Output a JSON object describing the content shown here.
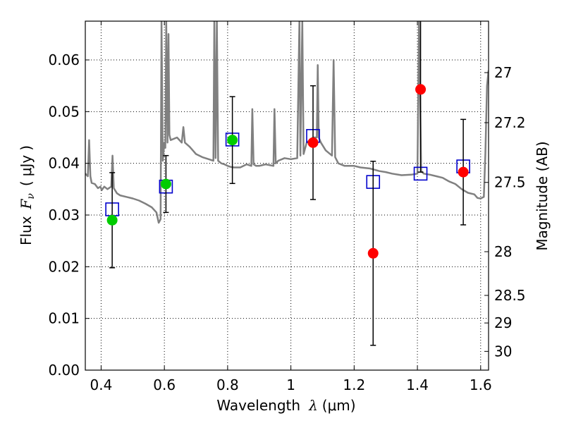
{
  "chart_data": {
    "type": "scatter",
    "xlabel": {
      "text": "Wavelength",
      "symbol": "λ",
      "unit": "μm"
    },
    "ylabel": {
      "text": "Flux",
      "symbol": "F",
      "subscript": "ν",
      "unit": "μJy"
    },
    "y2label": "Magnitude (AB)",
    "xlim": [
      0.35,
      1.625
    ],
    "ylim": [
      0.0,
      0.0675
    ],
    "grid": true,
    "x_ticks": [
      0.4,
      0.6,
      0.8,
      1.0,
      1.2,
      1.4,
      1.6
    ],
    "x_tick_labels": [
      "0.4",
      "0.6",
      "0.8",
      "1",
      "1.2",
      "1.4",
      "1.6"
    ],
    "y_ticks": [
      0.0,
      0.01,
      0.02,
      0.03,
      0.04,
      0.05,
      0.06
    ],
    "y_tick_labels": [
      "0.00",
      "0.01",
      "0.02",
      "0.03",
      "0.04",
      "0.05",
      "0.06"
    ],
    "y2_ticks": [
      27,
      27.2,
      27.5,
      28,
      28.5,
      29,
      30
    ],
    "y2_tick_labels": [
      "27",
      "27.2",
      "27.5",
      "28",
      "28.5",
      "29",
      "30"
    ],
    "colors": {
      "model": "#808080",
      "green": "#00cc00",
      "red": "#ff0000",
      "box": "#0000cc",
      "error": "#000000"
    },
    "observed_green": [
      {
        "x": 0.435,
        "y": 0.029,
        "err": 0.0092
      },
      {
        "x": 0.605,
        "y": 0.036,
        "err": 0.0055
      },
      {
        "x": 0.815,
        "y": 0.0445,
        "err": 0.0084
      }
    ],
    "observed_red": [
      {
        "x": 1.07,
        "y": 0.044,
        "err": 0.011
      },
      {
        "x": 1.26,
        "y": 0.0226,
        "err": 0.0178
      },
      {
        "x": 1.41,
        "y": 0.0543,
        "err": 0.016
      },
      {
        "x": 1.545,
        "y": 0.0383,
        "err": 0.0102
      }
    ],
    "model_boxes": [
      {
        "x": 0.435,
        "y": 0.0311
      },
      {
        "x": 0.605,
        "y": 0.0355
      },
      {
        "x": 0.815,
        "y": 0.0446
      },
      {
        "x": 1.07,
        "y": 0.0453
      },
      {
        "x": 1.26,
        "y": 0.0364
      },
      {
        "x": 1.41,
        "y": 0.038
      },
      {
        "x": 1.545,
        "y": 0.0394
      }
    ],
    "model_spectrum": {
      "x": [
        0.35,
        0.358,
        0.362,
        0.366,
        0.37,
        0.38,
        0.39,
        0.398,
        0.402,
        0.41,
        0.42,
        0.432,
        0.436,
        0.44,
        0.45,
        0.46,
        0.48,
        0.5,
        0.52,
        0.54,
        0.56,
        0.575,
        0.582,
        0.588,
        0.591,
        0.595,
        0.6,
        0.603,
        0.606,
        0.61,
        0.613,
        0.616,
        0.62,
        0.64,
        0.655,
        0.66,
        0.665,
        0.68,
        0.69,
        0.7,
        0.72,
        0.74,
        0.755,
        0.758,
        0.762,
        0.766,
        0.77,
        0.78,
        0.79,
        0.8,
        0.81,
        0.82,
        0.84,
        0.86,
        0.875,
        0.878,
        0.882,
        0.89,
        0.9,
        0.92,
        0.945,
        0.948,
        0.952,
        0.96,
        0.98,
        1.0,
        1.02,
        1.027,
        1.03,
        1.036,
        1.04,
        1.05,
        1.06,
        1.07,
        1.082,
        1.085,
        1.088,
        1.095,
        1.11,
        1.13,
        1.135,
        1.14,
        1.15,
        1.17,
        1.2,
        1.22,
        1.25,
        1.28,
        1.3,
        1.32,
        1.35,
        1.38,
        1.4,
        1.405,
        1.412,
        1.42,
        1.44,
        1.46,
        1.48,
        1.5,
        1.52,
        1.54,
        1.56,
        1.58,
        1.59,
        1.6,
        1.61,
        1.615,
        1.62,
        1.625
      ],
      "y": [
        0.038,
        0.0375,
        0.0445,
        0.0375,
        0.0362,
        0.036,
        0.0352,
        0.0355,
        0.0348,
        0.0355,
        0.035,
        0.0355,
        0.0415,
        0.0352,
        0.0342,
        0.0338,
        0.0335,
        0.0332,
        0.0328,
        0.0322,
        0.0315,
        0.0305,
        0.0285,
        0.0292,
        0.0675,
        0.0405,
        0.044,
        0.043,
        0.0675,
        0.044,
        0.065,
        0.0455,
        0.0445,
        0.045,
        0.044,
        0.047,
        0.044,
        0.0432,
        0.0425,
        0.0418,
        0.0412,
        0.0408,
        0.0405,
        0.0675,
        0.041,
        0.0675,
        0.0405,
        0.04,
        0.0398,
        0.0395,
        0.0393,
        0.0392,
        0.0392,
        0.0398,
        0.0395,
        0.0505,
        0.0398,
        0.0395,
        0.0395,
        0.0398,
        0.0395,
        0.0505,
        0.04,
        0.0405,
        0.041,
        0.0408,
        0.041,
        0.0675,
        0.0415,
        0.0675,
        0.0418,
        0.044,
        0.0445,
        0.045,
        0.045,
        0.059,
        0.045,
        0.044,
        0.0425,
        0.0415,
        0.06,
        0.0412,
        0.04,
        0.0395,
        0.0395,
        0.0392,
        0.039,
        0.0385,
        0.0383,
        0.038,
        0.0377,
        0.0378,
        0.038,
        0.0675,
        0.0385,
        0.038,
        0.0378,
        0.0375,
        0.0372,
        0.0365,
        0.036,
        0.035,
        0.0343,
        0.034,
        0.0333,
        0.0332,
        0.0335,
        0.042,
        0.055,
        0.058
      ]
    }
  }
}
